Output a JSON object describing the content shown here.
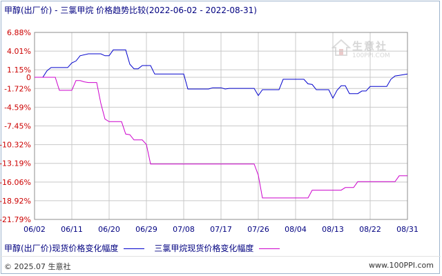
{
  "title": "甲醇(出厂价) - 三氯甲烷 价格趋势比较(2022-06-02 - 2022-08-31)",
  "watermark": {
    "main": "生意社",
    "sub": "100PPI.COM"
  },
  "footer": {
    "left": "© 2025.07 生意社",
    "right": "www.100PPI.com"
  },
  "colors": {
    "series1": "#0000cc",
    "series2": "#cc00cc",
    "grid": "#c8c8c8",
    "axis": "#000080"
  },
  "chart_data": {
    "type": "line",
    "title": "甲醇(出厂价) - 三氯甲烷 价格趋势比较(2022-06-02 - 2022-08-31)",
    "ylim": [
      -21.79,
      6.88
    ],
    "y_ticks": [
      "6.88%",
      "4.01%",
      "1.15%",
      "0",
      "-1.72%",
      "-4.59%",
      "-7.45%",
      "-10.32%",
      "-13.19%",
      "-16.06%",
      "-18.92%",
      "-21.79%"
    ],
    "y_tick_values": [
      6.88,
      4.01,
      1.15,
      0,
      -1.72,
      -4.59,
      -7.45,
      -10.32,
      -13.19,
      -16.06,
      -18.92,
      -21.79
    ],
    "x_ticks": [
      "06/02",
      "06/11",
      "06/20",
      "06/29",
      "07/08",
      "07/17",
      "07/26",
      "08/04",
      "08/13",
      "08/22",
      "08/31"
    ],
    "x_range": [
      "2022-06-02",
      "2022-08-31"
    ],
    "grid": true,
    "legend_position": "bottom",
    "series": [
      {
        "name": "甲醇(出厂价)现货价格变化幅度",
        "points": [
          [
            "2022-06-02",
            0
          ],
          [
            "2022-06-04",
            0
          ],
          [
            "2022-06-05",
            1.0
          ],
          [
            "2022-06-06",
            1.5
          ],
          [
            "2022-06-10",
            1.5
          ],
          [
            "2022-06-11",
            2.2
          ],
          [
            "2022-06-12",
            2.5
          ],
          [
            "2022-06-13",
            3.3
          ],
          [
            "2022-06-15",
            3.6
          ],
          [
            "2022-06-18",
            3.6
          ],
          [
            "2022-06-19",
            3.3
          ],
          [
            "2022-06-20",
            3.3
          ],
          [
            "2022-06-21",
            4.2
          ],
          [
            "2022-06-24",
            4.2
          ],
          [
            "2022-06-25",
            2.0
          ],
          [
            "2022-06-26",
            1.3
          ],
          [
            "2022-06-27",
            1.3
          ],
          [
            "2022-06-28",
            1.8
          ],
          [
            "2022-06-30",
            1.8
          ],
          [
            "2022-07-01",
            0.5
          ],
          [
            "2022-07-08",
            0.5
          ],
          [
            "2022-07-09",
            -1.8
          ],
          [
            "2022-07-14",
            -1.8
          ],
          [
            "2022-07-15",
            -1.6
          ],
          [
            "2022-07-17",
            -1.6
          ],
          [
            "2022-07-18",
            -1.8
          ],
          [
            "2022-07-19",
            -1.7
          ],
          [
            "2022-07-25",
            -1.7
          ],
          [
            "2022-07-26",
            -2.8
          ],
          [
            "2022-07-27",
            -1.9
          ],
          [
            "2022-07-31",
            -1.9
          ],
          [
            "2022-08-01",
            -0.3
          ],
          [
            "2022-08-06",
            -0.3
          ],
          [
            "2022-08-07",
            -1.0
          ],
          [
            "2022-08-08",
            -1.1
          ],
          [
            "2022-08-09",
            -1.9
          ],
          [
            "2022-08-12",
            -1.9
          ],
          [
            "2022-08-13",
            -3.2
          ],
          [
            "2022-08-14",
            -2.0
          ],
          [
            "2022-08-15",
            -1.3
          ],
          [
            "2022-08-16",
            -1.3
          ],
          [
            "2022-08-17",
            -2.5
          ],
          [
            "2022-08-19",
            -2.5
          ],
          [
            "2022-08-20",
            -2.1
          ],
          [
            "2022-08-21",
            -2.1
          ],
          [
            "2022-08-22",
            -1.4
          ],
          [
            "2022-08-26",
            -1.4
          ],
          [
            "2022-08-27",
            -0.3
          ],
          [
            "2022-08-28",
            0.2
          ],
          [
            "2022-08-29",
            0.3
          ],
          [
            "2022-08-31",
            0.5
          ]
        ]
      },
      {
        "name": "三氯甲烷现货价格变化幅度",
        "points": [
          [
            "2022-06-02",
            0
          ],
          [
            "2022-06-07",
            0
          ],
          [
            "2022-06-08",
            -2.0
          ],
          [
            "2022-06-11",
            -2.0
          ],
          [
            "2022-06-12",
            -0.5
          ],
          [
            "2022-06-13",
            -0.5
          ],
          [
            "2022-06-14",
            -0.7
          ],
          [
            "2022-06-15",
            -0.8
          ],
          [
            "2022-06-17",
            -0.8
          ],
          [
            "2022-06-18",
            -4.0
          ],
          [
            "2022-06-19",
            -6.4
          ],
          [
            "2022-06-20",
            -6.8
          ],
          [
            "2022-06-23",
            -6.8
          ],
          [
            "2022-06-24",
            -8.7
          ],
          [
            "2022-06-25",
            -8.8
          ],
          [
            "2022-06-26",
            -9.6
          ],
          [
            "2022-06-28",
            -9.6
          ],
          [
            "2022-06-29",
            -10.3
          ],
          [
            "2022-06-30",
            -13.3
          ],
          [
            "2022-07-25",
            -13.3
          ],
          [
            "2022-07-26",
            -15.0
          ],
          [
            "2022-07-27",
            -18.5
          ],
          [
            "2022-08-07",
            -18.5
          ],
          [
            "2022-08-08",
            -17.3
          ],
          [
            "2022-08-15",
            -17.3
          ],
          [
            "2022-08-16",
            -16.9
          ],
          [
            "2022-08-18",
            -16.9
          ],
          [
            "2022-08-19",
            -16.0
          ],
          [
            "2022-08-28",
            -16.0
          ],
          [
            "2022-08-29",
            -15.1
          ],
          [
            "2022-08-31",
            -15.1
          ]
        ]
      }
    ]
  }
}
